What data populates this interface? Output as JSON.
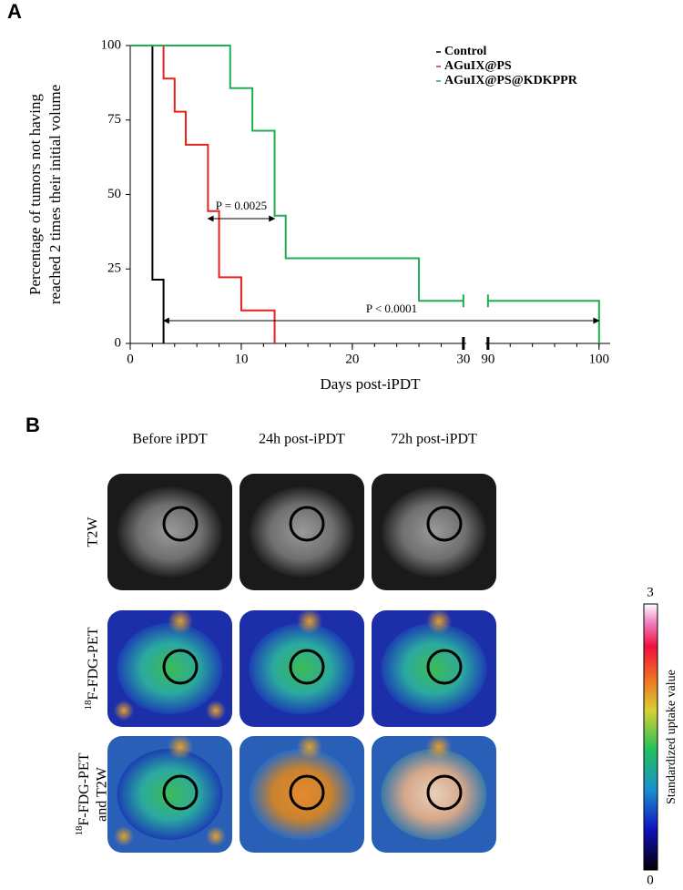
{
  "panel_labels": [
    "A",
    "B"
  ],
  "chart_data": {
    "type": "step",
    "ylabel": [
      "Percentage of tumors not having",
      "reached 2 times their initial volume"
    ],
    "xlabel": "Days post-iPDT",
    "xlim": [
      0,
      101
    ],
    "xbreak": [
      30,
      90
    ],
    "xticks": [
      0,
      10,
      20,
      30,
      90,
      100
    ],
    "ylim": [
      0,
      100
    ],
    "yticks": [
      0,
      25,
      50,
      75,
      100
    ],
    "series": [
      {
        "name": "Control",
        "color": "#000000",
        "x": [
          0,
          2,
          3
        ],
        "values": [
          100,
          21.4,
          0
        ]
      },
      {
        "name": "AGuIX@PS",
        "color": "#e8201e",
        "x": [
          0,
          3,
          4,
          5,
          7,
          8,
          10,
          13
        ],
        "values": [
          100,
          88.9,
          77.8,
          66.7,
          44.4,
          22.2,
          11.1,
          0
        ]
      },
      {
        "name": "AGuIX@PS@KDKPPR",
        "color": "#1fad4f",
        "x": [
          0,
          9,
          11,
          13,
          14,
          26,
          100
        ],
        "values": [
          100,
          85.7,
          71.4,
          42.9,
          28.6,
          14.3,
          0
        ]
      }
    ],
    "annotations": [
      "P = 0.0025",
      "P < 0.0001"
    ]
  },
  "panel_b": {
    "columns": [
      "Before iPDT",
      "24h post-iPDT",
      "72h post-iPDT"
    ],
    "rows": [
      {
        "label": "T2W"
      },
      {
        "sup": "18",
        "label": "F-FDG-PET"
      },
      {
        "sup": "18",
        "label": "F-FDG-PET",
        "label2": "and T2W"
      }
    ],
    "colorbar": {
      "max": "3",
      "min": "0",
      "label": "Standardized uptake value"
    }
  }
}
